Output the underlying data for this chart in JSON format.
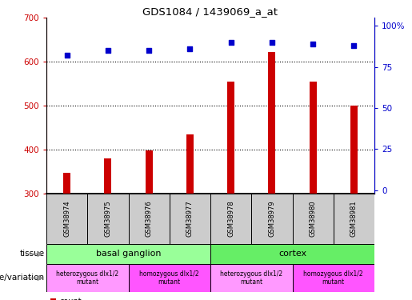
{
  "title": "GDS1084 / 1439069_a_at",
  "samples": [
    "GSM38974",
    "GSM38975",
    "GSM38976",
    "GSM38977",
    "GSM38978",
    "GSM38979",
    "GSM38980",
    "GSM38981"
  ],
  "counts": [
    347,
    380,
    398,
    435,
    555,
    622,
    555,
    500
  ],
  "percentiles": [
    82,
    85,
    85,
    86,
    90,
    90,
    89,
    88
  ],
  "ymin": 300,
  "ymax": 700,
  "yticks": [
    300,
    400,
    500,
    600,
    700
  ],
  "y2ticks": [
    0,
    25,
    50,
    75,
    100
  ],
  "y2labels": [
    "0",
    "25",
    "50",
    "75",
    "100%"
  ],
  "bar_color": "#cc0000",
  "scatter_color": "#0000cc",
  "tissue_row": {
    "label": "tissue",
    "groups": [
      {
        "text": "basal ganglion",
        "start": 0,
        "end": 4,
        "color": "#99ff99"
      },
      {
        "text": "cortex",
        "start": 4,
        "end": 8,
        "color": "#66ee66"
      }
    ]
  },
  "genotype_row": {
    "label": "genotype/variation",
    "groups": [
      {
        "text": "heterozygous dlx1/2\nmutant",
        "start": 0,
        "end": 2,
        "color": "#ff99ff"
      },
      {
        "text": "homozygous dlx1/2\nmutant",
        "start": 2,
        "end": 4,
        "color": "#ff55ff"
      },
      {
        "text": "heterozygous dlx1/2\nmutant",
        "start": 4,
        "end": 6,
        "color": "#ff99ff"
      },
      {
        "text": "homozygous dlx1/2\nmutant",
        "start": 6,
        "end": 8,
        "color": "#ff55ff"
      }
    ]
  },
  "legend_count_color": "#cc0000",
  "legend_pct_color": "#0000cc",
  "sample_box_color": "#cccccc"
}
